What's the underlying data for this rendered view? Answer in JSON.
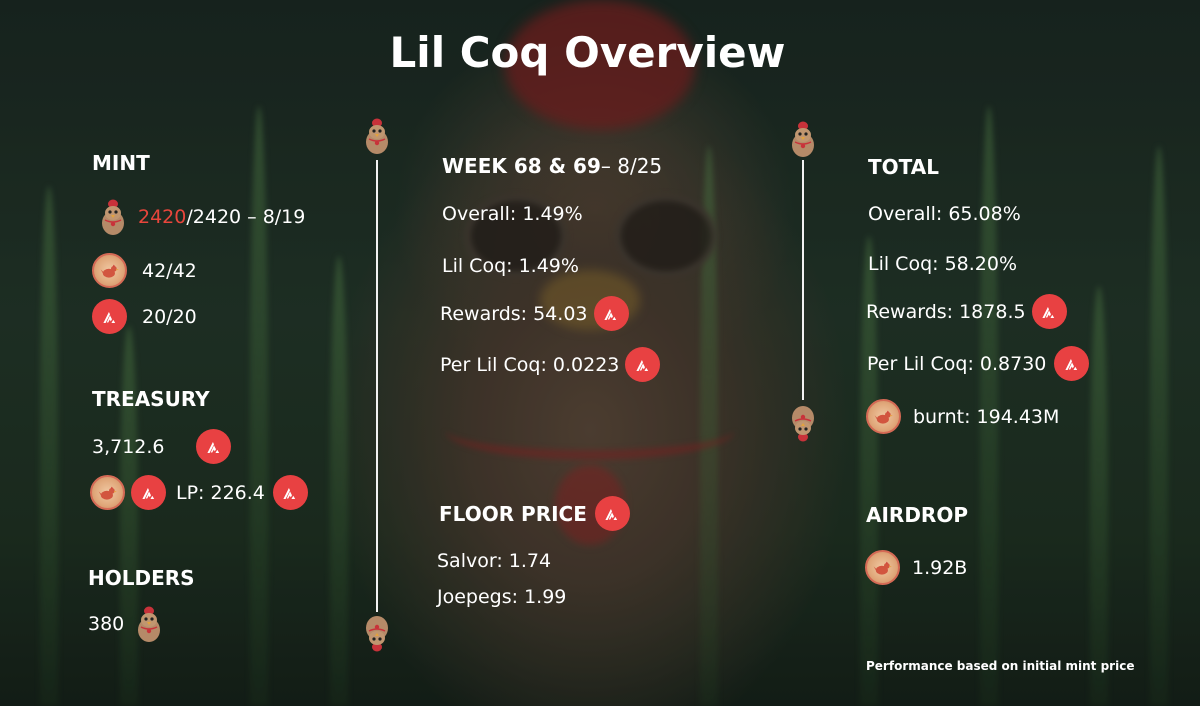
{
  "title": "Lil Coq Overview",
  "colors": {
    "avax_red": "#e84142",
    "highlight_red": "#e8463c",
    "text": "#ffffff"
  },
  "icons": {
    "avax": "avax-logo-icon",
    "coq_coin": "coq-coin-icon",
    "mascot": "lil-coq-mascot-icon"
  },
  "mint": {
    "heading": "MINT",
    "minted": "2420",
    "minted_rest": "/2420 – 8/19",
    "coin_count": "42/42",
    "avax_count": "20/20"
  },
  "treasury": {
    "heading": "TREASURY",
    "amount": "3,712.6",
    "lp": "LP: 226.4"
  },
  "holders": {
    "heading": "HOLDERS",
    "count": "380"
  },
  "week": {
    "heading": "WEEK 68 & 69",
    "date": " – 8/25",
    "overall": "Overall: 1.49%",
    "lil_coq": "Lil Coq: 1.49%",
    "rewards": "Rewards: 54.03",
    "per_lil_coq": "Per Lil Coq: 0.0223"
  },
  "floor_price": {
    "heading": "FLOOR PRICE",
    "salvor": "Salvor: 1.74",
    "joepegs": "Joepegs: 1.99"
  },
  "total": {
    "heading": "TOTAL",
    "overall": "Overall: 65.08%",
    "lil_coq": "Lil Coq: 58.20%",
    "rewards": "Rewards: 1878.5",
    "per_lil_coq": "Per Lil Coq: 0.8730",
    "burnt": "burnt: 194.43M"
  },
  "airdrop": {
    "heading": "AIRDROP",
    "amount": "1.92B"
  },
  "footnote": "Performance based on initial mint price"
}
